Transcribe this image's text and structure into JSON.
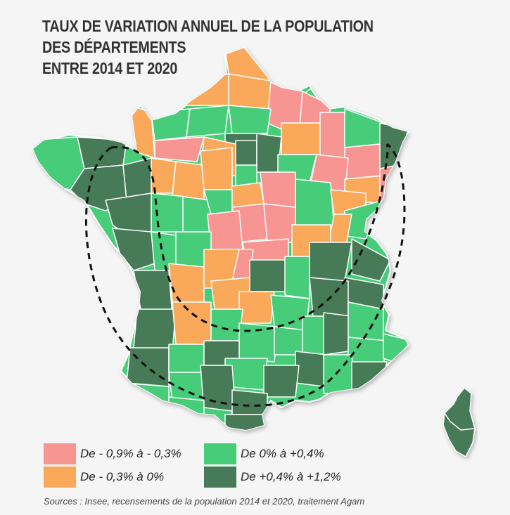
{
  "title": {
    "line1": "TAUX DE VARIATION ANNUEL DE LA POPULATION",
    "line2": "DES DÉPARTEMENTS",
    "line3": "ENTRE 2014 ET 2020"
  },
  "colors": {
    "decline_strong": "#f79593",
    "decline_weak": "#f9a959",
    "growth_weak": "#47cc7a",
    "growth_strong": "#477a56",
    "border": "#ffffff",
    "background": "#f5f5f5"
  },
  "legend": [
    {
      "label": "De - 0,9% à - 0,3%",
      "class": "decline_strong"
    },
    {
      "label": "De - 0,3% à 0%",
      "class": "decline_weak"
    },
    {
      "label": "De 0% à +0,4%",
      "class": "growth_weak"
    },
    {
      "label": "De +0,4% à +1,2%",
      "class": "growth_strong"
    }
  ],
  "annotation": "dashed-ellipse-growth-zones",
  "source": "Sources : Insee, recensements de la population 2014 et 2020, traitement Agam"
}
